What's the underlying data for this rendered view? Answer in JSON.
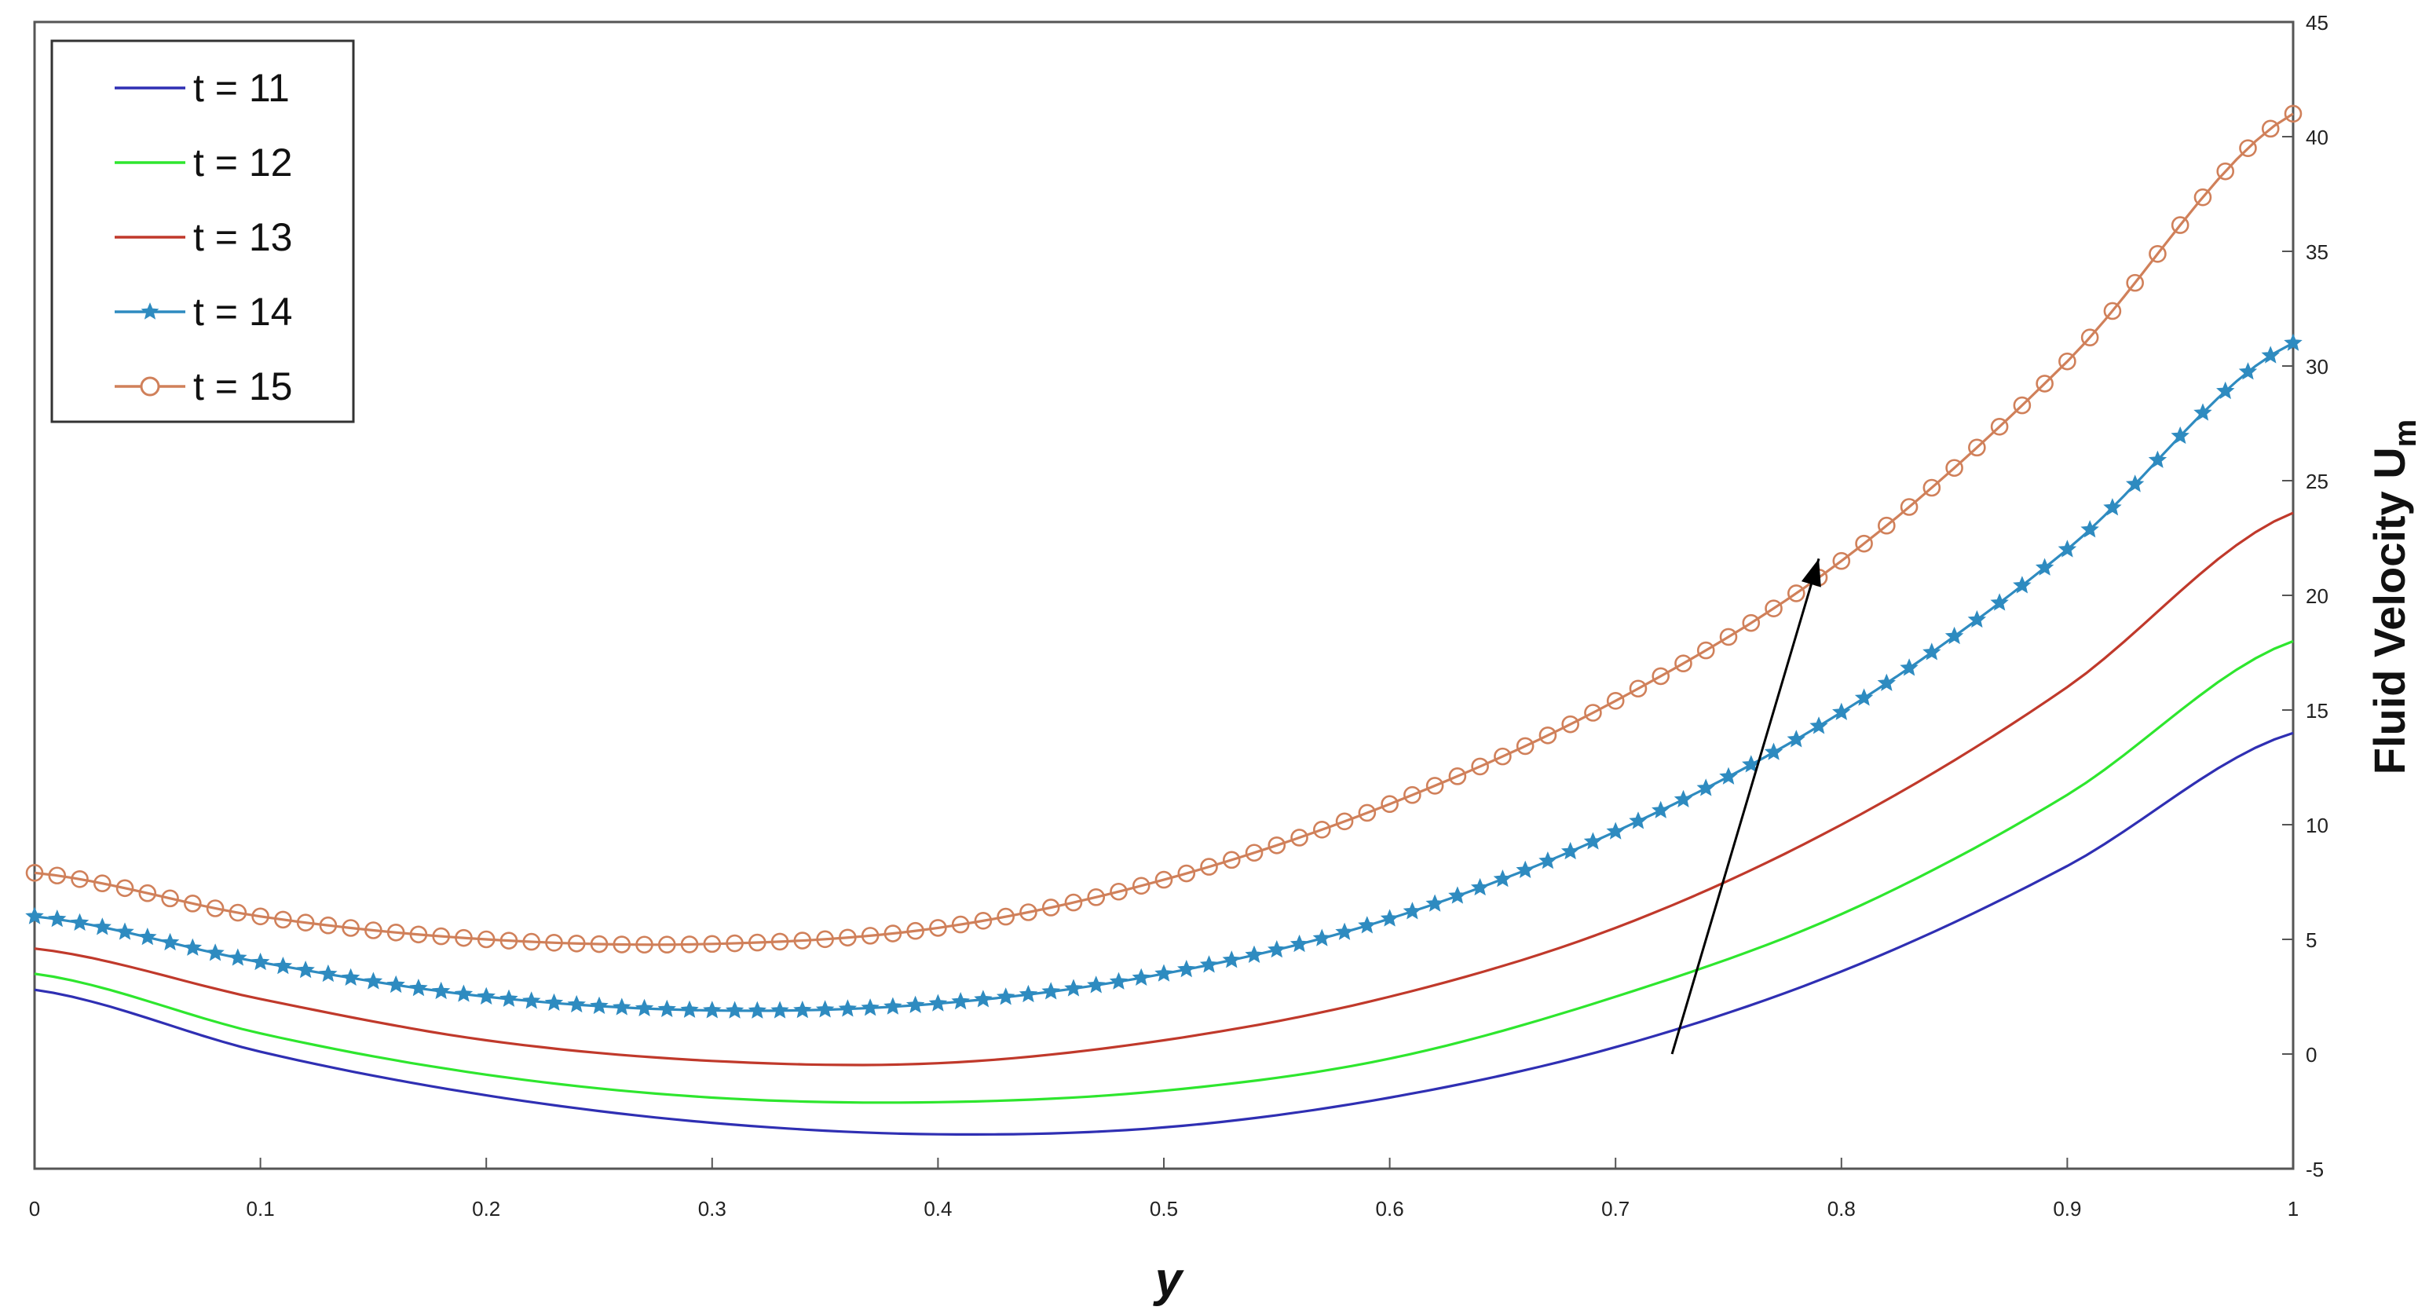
{
  "chart_data": {
    "type": "line",
    "xlabel": "y",
    "ylabel": "Fluid Velocity U",
    "ylabel_subscript": "m",
    "xlim": [
      0,
      1
    ],
    "ylim": [
      -5,
      45
    ],
    "y_axis_position": "right",
    "grid": false,
    "legend_position": "top-left",
    "x_ticks": [
      "0",
      "0.1",
      "0.2",
      "0.3",
      "0.4",
      "0.5",
      "0.6",
      "0.7",
      "0.8",
      "0.9",
      "1"
    ],
    "y_ticks": [
      "-5",
      "0",
      "5",
      "10",
      "15",
      "20",
      "25",
      "30",
      "35",
      "40",
      "45"
    ],
    "x": [
      0,
      0.1,
      0.2,
      0.3,
      0.4,
      0.5,
      0.6,
      0.7,
      0.8,
      0.9,
      1.0
    ],
    "series": [
      {
        "name": "t = 11",
        "color": "#2f2fb3",
        "marker": "none",
        "values": [
          2.8,
          0.1,
          -1.8,
          -3.0,
          -3.5,
          -3.2,
          -1.9,
          0.3,
          3.6,
          8.2,
          14.0
        ]
      },
      {
        "name": "t = 12",
        "color": "#2ee62e",
        "marker": "none",
        "values": [
          3.5,
          0.9,
          -0.9,
          -1.9,
          -2.1,
          -1.6,
          -0.2,
          2.5,
          6.1,
          11.3,
          18.0
        ]
      },
      {
        "name": "t = 13",
        "color": "#c0392b",
        "marker": "none",
        "values": [
          4.6,
          2.4,
          0.6,
          -0.3,
          -0.4,
          0.6,
          2.5,
          5.5,
          10.0,
          16.0,
          23.6
        ]
      },
      {
        "name": "t = 14",
        "color": "#2e8bc0",
        "marker": "star",
        "values": [
          6.0,
          4.0,
          2.5,
          1.9,
          2.2,
          3.5,
          5.9,
          9.7,
          14.9,
          22.0,
          31.0
        ]
      },
      {
        "name": "t = 15",
        "color": "#d0805a",
        "marker": "circle",
        "values": [
          7.9,
          6.0,
          5.0,
          4.8,
          5.5,
          7.6,
          10.9,
          15.4,
          21.5,
          30.2,
          41.0
        ]
      }
    ],
    "annotations": [
      {
        "type": "arrow",
        "from": [
          0.725,
          0
        ],
        "to": [
          0.79,
          21.6
        ]
      }
    ]
  }
}
